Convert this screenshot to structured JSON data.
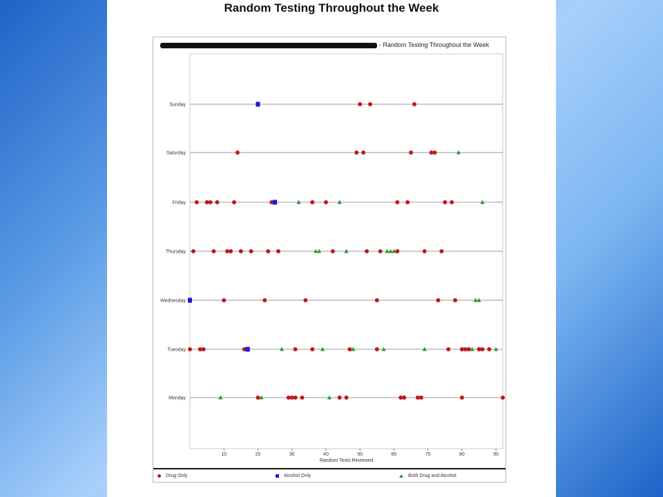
{
  "slide": {
    "title": "Random Testing Throughout the Week"
  },
  "chart_data": {
    "type": "scatter",
    "title": "- Random Testing Throughout the Week",
    "title_redacted": true,
    "xlabel": "Random Tests Reviewed",
    "ylabel": "",
    "xlim": [
      0,
      92
    ],
    "xticks": [
      10,
      20,
      30,
      40,
      50,
      60,
      70,
      80,
      90
    ],
    "categories": [
      "Monday",
      "Tuesday",
      "Wednesday",
      "Thursday",
      "Friday",
      "Saturday",
      "Sunday"
    ],
    "category_labels": [
      "Monday",
      "Tuesday",
      "Wednesday",
      "Thursday",
      "Friday",
      "Saturday",
      "Sunday"
    ],
    "grid": "horizontal lines per category",
    "legend_position": "bottom",
    "colors": {
      "drug": "#c0181e",
      "alcohol": "#1a1ad6",
      "both": "#2b9a2b"
    },
    "series": [
      {
        "name": "Drug Only",
        "points": {
          "Monday": [
            20,
            29,
            30,
            31,
            33,
            44,
            46,
            62,
            63,
            67,
            68,
            80,
            92
          ],
          "Tuesday": [
            0,
            3,
            4,
            16,
            17,
            31,
            36,
            47,
            55,
            76,
            80,
            81,
            82,
            85,
            86,
            88
          ],
          "Wednesday": [
            10,
            22,
            34,
            55,
            73,
            78
          ],
          "Thursday": [
            1,
            7,
            11,
            12,
            15,
            18,
            23,
            26,
            42,
            52,
            56,
            61,
            69,
            74
          ],
          "Friday": [
            2,
            5,
            6,
            8,
            13,
            24,
            36,
            40,
            61,
            64,
            75,
            77
          ],
          "Saturday": [
            14,
            49,
            51,
            65,
            71,
            72
          ],
          "Sunday": [
            50,
            53,
            66
          ]
        }
      },
      {
        "name": "Alcohol Only",
        "points": {
          "Tuesday": [
            17
          ],
          "Wednesday": [
            0
          ],
          "Friday": [
            25
          ],
          "Sunday": [
            20
          ]
        }
      },
      {
        "name": "Both Drug and Alcohol",
        "points": {
          "Monday": [
            9,
            21,
            41
          ],
          "Tuesday": [
            27,
            39,
            48,
            57,
            69,
            83,
            90
          ],
          "Wednesday": [
            84,
            85
          ],
          "Thursday": [
            37,
            38,
            46,
            58,
            59,
            60
          ],
          "Friday": [
            32,
            44,
            86
          ],
          "Saturday": [
            79
          ]
        }
      }
    ]
  }
}
